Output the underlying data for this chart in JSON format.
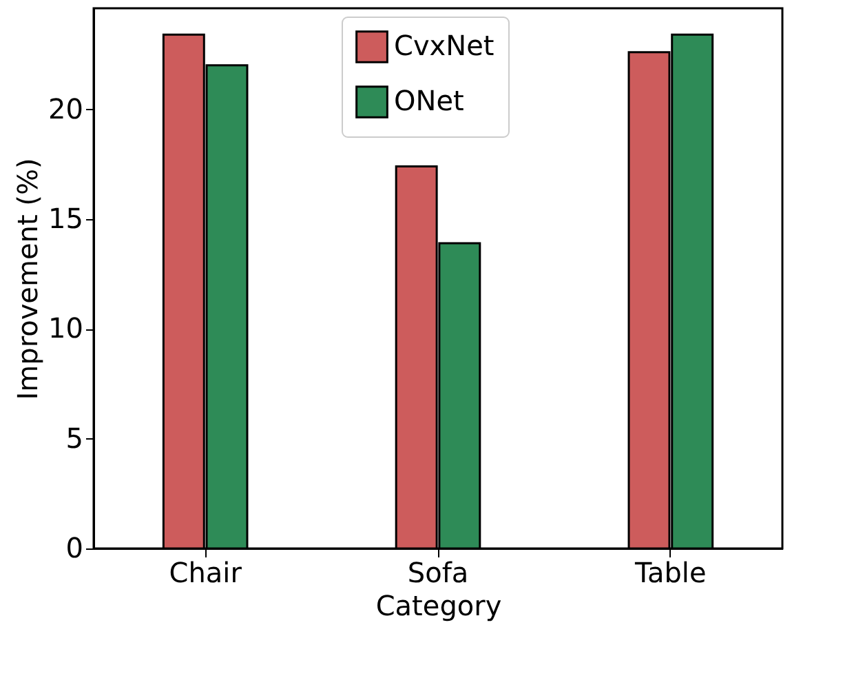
{
  "chart_data": {
    "type": "bar",
    "xlabel": "Category",
    "ylabel": "Improvement (%)",
    "categories": [
      "Chair",
      "Sofa",
      "Table"
    ],
    "series": [
      {
        "name": "CvxNet",
        "color": "#cd5c5c",
        "values": [
          23.4,
          17.4,
          22.6
        ]
      },
      {
        "name": "ONet",
        "color": "#2e8b57",
        "values": [
          22.0,
          13.9,
          23.4
        ]
      }
    ],
    "ylim": [
      0,
      24.6
    ],
    "yticks": [
      0,
      5,
      10,
      15,
      20
    ],
    "legend": "top",
    "grid": false
  }
}
